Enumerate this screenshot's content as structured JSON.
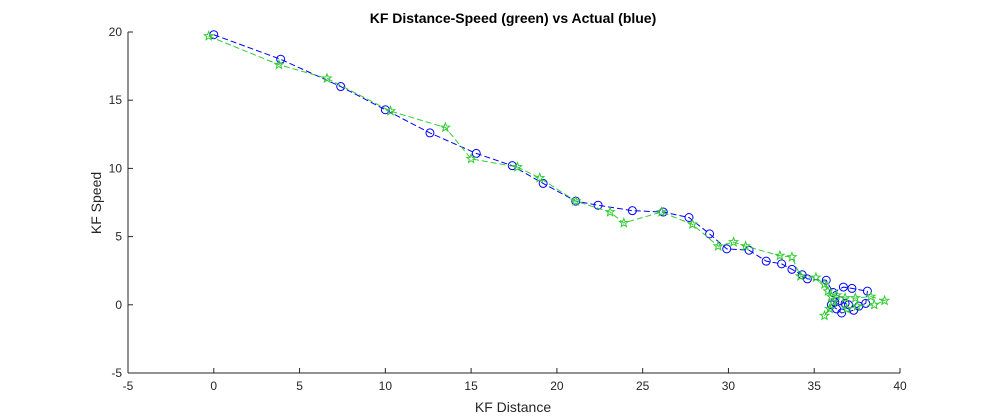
{
  "chart_data": {
    "type": "line",
    "title": "KF Distance-Speed (green) vs Actual (blue)",
    "xlabel": "KF Distance",
    "ylabel": "KF Speed",
    "xlim": [
      -5,
      40
    ],
    "ylim": [
      -5,
      20
    ],
    "xticks": [
      "-5",
      "0",
      "5",
      "10",
      "15",
      "20",
      "25",
      "30",
      "35",
      "40"
    ],
    "yticks": [
      "-5",
      "0",
      "5",
      "10",
      "15",
      "20"
    ],
    "grid": false,
    "legend": "none",
    "series": [
      {
        "color": "#0000ff",
        "marker": "circle",
        "line_style": "dashed",
        "x": [
          0,
          3.9,
          7.4,
          10,
          12.6,
          15.3,
          17.4,
          19.2,
          21.1,
          22.4,
          24.4,
          26.2,
          27.7,
          28.9,
          29.9,
          31.2,
          32.2,
          33.1,
          33.7,
          34.3,
          34.6,
          35.7,
          36.1,
          36.7,
          37.2,
          38.1,
          38.0,
          37.6,
          37.3,
          36.6,
          36.3,
          36.0,
          36.2,
          36.5,
          36.8,
          37.0
        ],
        "y": [
          19.8,
          18.0,
          16.0,
          14.3,
          12.6,
          11.1,
          10.2,
          8.9,
          7.6,
          7.3,
          6.9,
          6.8,
          6.4,
          5.2,
          4.1,
          4.0,
          3.2,
          3.0,
          2.6,
          2.2,
          1.9,
          1.8,
          0.9,
          1.3,
          1.2,
          1.0,
          0.1,
          -0.1,
          -0.4,
          -0.6,
          -0.3,
          0.0,
          0.2,
          0.3,
          0.1,
          0.0
        ]
      },
      {
        "color": "#33cc33",
        "marker": "star",
        "line_style": "dashed",
        "x": [
          -0.3,
          3.8,
          6.6,
          10.3,
          13.5,
          15.0,
          17.7,
          19.0,
          21.1,
          23.1,
          23.9,
          26.1,
          27.9,
          29.4,
          30.3,
          31.0,
          33.0,
          33.7,
          34.2,
          35.1,
          35.6,
          35.8,
          36.0,
          36.3,
          36.8,
          37.4,
          38.3,
          39.1,
          38.5,
          37.5,
          36.9,
          36.1,
          35.6,
          35.9
        ],
        "y": [
          19.7,
          17.6,
          16.6,
          14.2,
          13.0,
          10.7,
          10.1,
          9.3,
          7.6,
          6.8,
          6.0,
          6.8,
          5.9,
          4.3,
          4.6,
          4.3,
          3.6,
          3.5,
          2.1,
          2.0,
          1.5,
          1.0,
          0.6,
          0.7,
          0.5,
          0.5,
          0.6,
          0.3,
          0.0,
          -0.1,
          -0.3,
          0.2,
          -0.8,
          -0.3
        ]
      }
    ]
  }
}
